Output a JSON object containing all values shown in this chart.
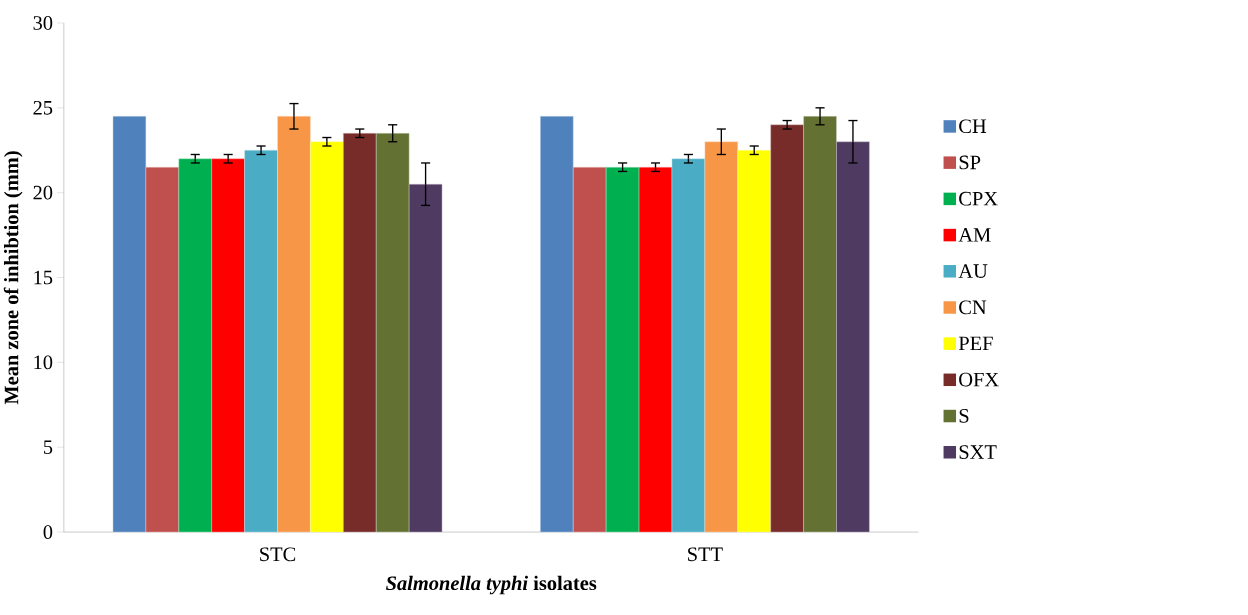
{
  "chart_data": {
    "type": "bar",
    "xlabel": "*Salmonella typhi* **isolates**",
    "ylabel": "Mean zone of inhibtion  (mm)",
    "categories": [
      "STC",
      "STT"
    ],
    "series": [
      {
        "name": "CH",
        "color": "#4f81bd",
        "values": [
          24.5,
          24.5
        ]
      },
      {
        "name": "SP",
        "color": "#c0504d",
        "values": [
          21.5,
          21.5
        ]
      },
      {
        "name": "CPX",
        "color": "#00b050",
        "values": [
          22,
          21.5
        ],
        "errors": [
          0.25,
          0.25
        ]
      },
      {
        "name": "AM",
        "color": "#ff0000",
        "values": [
          22,
          21.5
        ],
        "errors": [
          0.25,
          0.25
        ]
      },
      {
        "name": "AU",
        "color": "#4bacc6",
        "values": [
          22.5,
          22
        ],
        "errors": [
          0.25,
          0.25
        ]
      },
      {
        "name": "CN",
        "color": "#f79646",
        "values": [
          24.5,
          23
        ],
        "errors": [
          0.75,
          0.75
        ]
      },
      {
        "name": "PEF",
        "color": "#ffff00",
        "values": [
          23,
          22.5
        ],
        "errors": [
          0.25,
          0.25
        ]
      },
      {
        "name": "OFX",
        "color": "#772c2a",
        "values": [
          23.5,
          24
        ],
        "errors": [
          0.25,
          0.25
        ]
      },
      {
        "name": "S",
        "color": "#637233",
        "values": [
          23.5,
          24.5
        ],
        "errors": [
          0.5,
          0.5
        ]
      },
      {
        "name": "SXT",
        "color": "#4f3b62",
        "values": [
          20.5,
          23
        ],
        "errors": [
          1.25,
          1.25
        ]
      }
    ],
    "ylim": [
      0,
      30
    ],
    "yticks": [
      0,
      5,
      10,
      15,
      20,
      25,
      30
    ],
    "legend": "right"
  }
}
